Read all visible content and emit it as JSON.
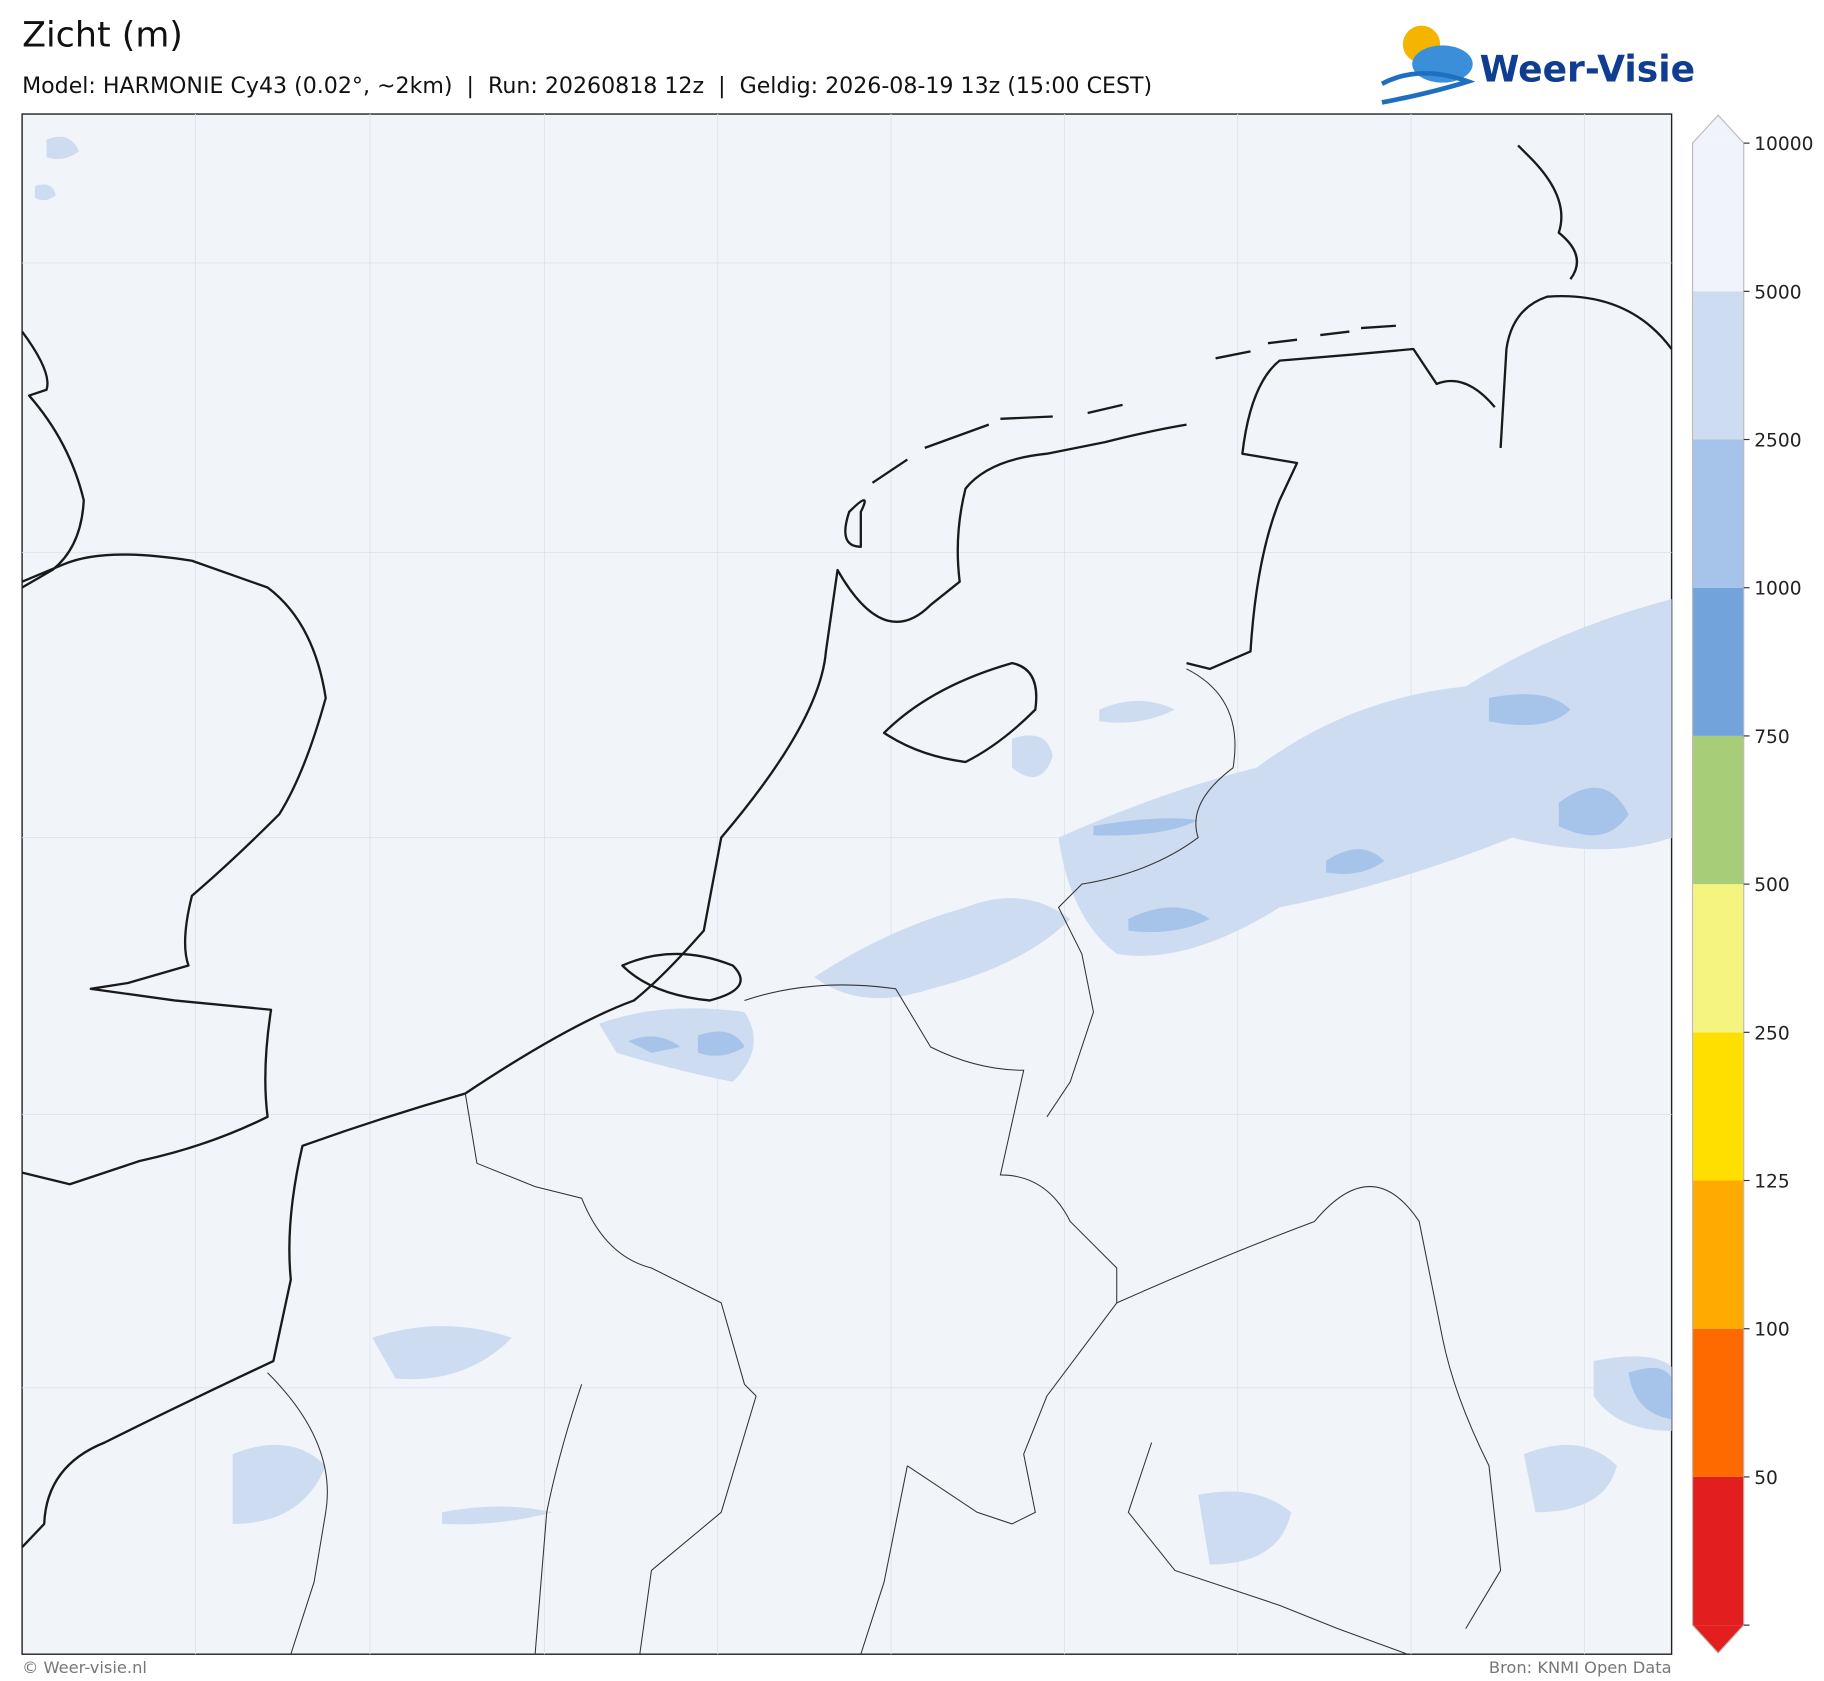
{
  "header": {
    "title": "Zicht (m)",
    "subtitle": "Model: HARMONIE Cy43 (0.02°, ~2km)  |  Run: 20260818 12z  |  Geldig: 2026-08-19 13z (15:00 CEST)",
    "logo": "Weer-Visie"
  },
  "colorbar": {
    "ticks": [
      50,
      100,
      125,
      250,
      500,
      750,
      1000,
      2500,
      5000,
      10000
    ],
    "colors": [
      "#e31e1e",
      "#ff6a00",
      "#ffaa00",
      "#ffdf00",
      "#f4f47e",
      "#a8cd78",
      "#72a3da",
      "#a6c3e9",
      "#cddcf0",
      "#f0f4fa"
    ]
  },
  "footer": {
    "left": "© Weer-visie.nl",
    "right": "Bron: KNMI Open Data"
  }
}
